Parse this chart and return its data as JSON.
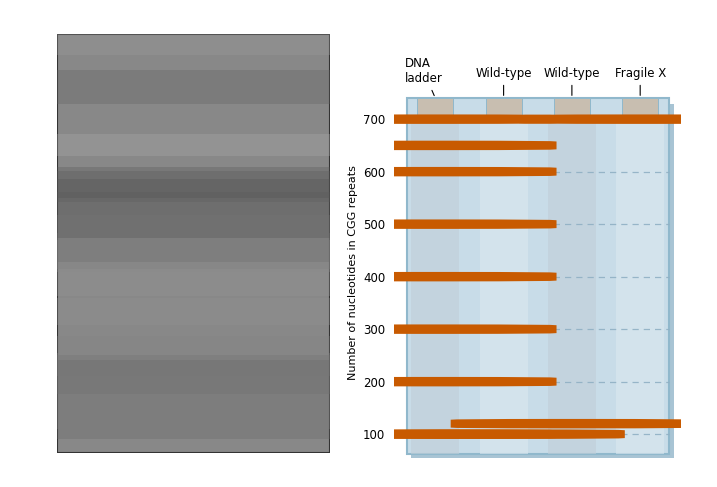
{
  "ylabel": "Number of nucleotides in CGG repeats",
  "yticks": [
    100,
    200,
    300,
    400,
    500,
    600,
    700
  ],
  "ymin": 55,
  "ymax": 760,
  "band_color": "#C85A00",
  "gel_bg": "#C8DCE8",
  "lane_bg_dark": "#C0CED8",
  "lane_bg_light": "#DCE8F0",
  "well_color": "#C8BEB0",
  "border_color": "#90B8CC",
  "dashed_color": "#90B0C4",
  "shadow_color": "#A8C4D4",
  "lanes": {
    "ladder": [
      700,
      650,
      600,
      500,
      400,
      300,
      200,
      100
    ],
    "wild1": [
      100
    ],
    "wild2": [
      120
    ],
    "fragilex": [
      700
    ]
  },
  "photo_border": "#333333",
  "photo_bg": "#888888",
  "fig_bg": "#FFFFFF"
}
